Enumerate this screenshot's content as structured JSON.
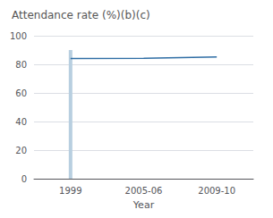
{
  "chart_data": {
    "type": "line",
    "title": "Attendance rate (%)(b)(c)",
    "xlabel": "Year",
    "categories": [
      "1999",
      "2005-06",
      "2009-10"
    ],
    "series": [
      {
        "type": "bar",
        "color": "#b8cfe0",
        "values": [
          90,
          null,
          null
        ]
      },
      {
        "type": "line",
        "color": "#2e6da4",
        "values": [
          84.0,
          84.2,
          85.2
        ]
      }
    ],
    "ylim": [
      0,
      100
    ],
    "yticks": [
      0,
      20,
      40,
      60,
      80,
      100
    ],
    "grid": true
  }
}
